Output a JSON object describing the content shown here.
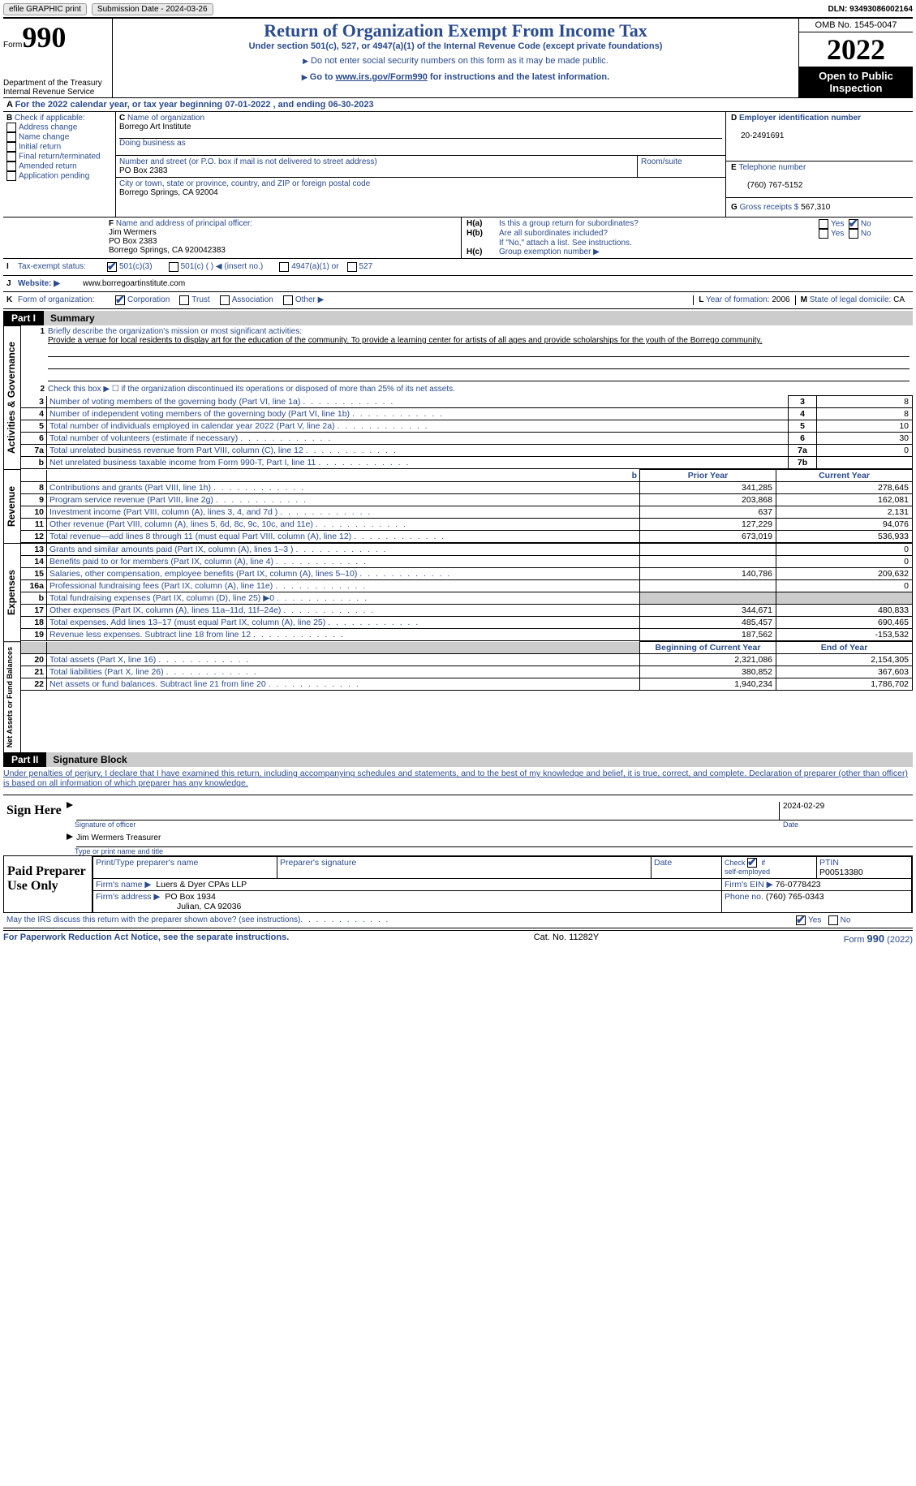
{
  "topbar": {
    "efile": "efile GRAPHIC print",
    "submission": "Submission Date - 2024-03-26",
    "dln": "DLN: 93493086002164"
  },
  "header": {
    "form_label": "Form",
    "form_no": "990",
    "dept1": "Department of the Treasury",
    "dept2": "Internal Revenue Service",
    "title": "Return of Organization Exempt From Income Tax",
    "subtitle": "Under section 501(c), 527, or 4947(a)(1) of the Internal Revenue Code (except private foundations)",
    "note1": "Do not enter social security numbers on this form as it may be made public.",
    "note2_pre": "Go to ",
    "note2_link": "www.irs.gov/Form990",
    "note2_post": " for instructions and the latest information.",
    "omb": "OMB No. 1545-0047",
    "year": "2022",
    "inspection": "Open to Public Inspection"
  },
  "A": {
    "line": "For the 2022 calendar year, or tax year beginning 07-01-2022    , and ending 06-30-2023"
  },
  "B": {
    "label": "Check if applicable:",
    "opts": [
      "Address change",
      "Name change",
      "Initial return",
      "Final return/terminated",
      "Amended return",
      "Application pending"
    ]
  },
  "C": {
    "name_label": "Name of organization",
    "name": "Borrego Art Institute",
    "dba_label": "Doing business as",
    "street_label": "Number and street (or P.O. box if mail is not delivered to street address)",
    "room_label": "Room/suite",
    "street": "PO Box 2383",
    "city_label": "City or town, state or province, country, and ZIP or foreign postal code",
    "city": "Borrego Springs, CA   92004"
  },
  "D": {
    "label": "Employer identification number",
    "val": "20-2491691"
  },
  "E": {
    "label": "Telephone number",
    "val": "(760) 767-5152"
  },
  "G": {
    "label": "Gross receipts $",
    "val": "567,310"
  },
  "F": {
    "label": "Name and address of principal officer:",
    "name": "Jim Wermers",
    "addr1": "PO Box 2383",
    "addr2": "Borrego Springs, CA   920042383"
  },
  "H": {
    "a": "Is this a group return for subordinates?",
    "b": "Are all subordinates included?",
    "b_note": "If \"No,\" attach a list. See instructions.",
    "c": "Group exemption number ▶",
    "yes": "Yes",
    "no": "No"
  },
  "I": {
    "label": "Tax-exempt status:",
    "o1": "501(c)(3)",
    "o2": "501(c) (   ) ◀ (insert no.)",
    "o3": "4947(a)(1) or",
    "o4": "527"
  },
  "J": {
    "label": "Website: ▶",
    "val": "www.borregoartinstitute.com"
  },
  "K": {
    "label": "Form of organization:",
    "o1": "Corporation",
    "o2": "Trust",
    "o3": "Association",
    "o4": "Other ▶"
  },
  "L": {
    "label": "Year of formation:",
    "val": "2006"
  },
  "M": {
    "label": "State of legal domicile:",
    "val": "CA"
  },
  "part1": {
    "label": "Part I",
    "title": "Summary"
  },
  "s1": {
    "q": "Briefly describe the organization's mission or most significant activities:",
    "a": "Provide a venue for local residents to display art for the education of the community. To provide a learning center for artists of all ages and provide scholarships for the youth of the Borrego community."
  },
  "s2": "Check this box ▶ ☐  if the organization discontinued its operations or disposed of more than 25% of its net assets.",
  "rows_ag": [
    {
      "n": "3",
      "t": "Number of voting members of the governing body (Part VI, line 1a)",
      "ln": "3",
      "v": "8"
    },
    {
      "n": "4",
      "t": "Number of independent voting members of the governing body (Part VI, line 1b)",
      "ln": "4",
      "v": "8"
    },
    {
      "n": "5",
      "t": "Total number of individuals employed in calendar year 2022 (Part V, line 2a)",
      "ln": "5",
      "v": "10"
    },
    {
      "n": "6",
      "t": "Total number of volunteers (estimate if necessary)",
      "ln": "6",
      "v": "30"
    },
    {
      "n": "7a",
      "t": "Total unrelated business revenue from Part VIII, column (C), line 12",
      "ln": "7a",
      "v": "0"
    },
    {
      "n": "b",
      "t": "Net unrelated business taxable income from Form 990-T, Part I, line 11",
      "ln": "7b",
      "v": ""
    }
  ],
  "col_hdr": {
    "prior": "Prior Year",
    "current": "Current Year"
  },
  "rev": [
    {
      "n": "8",
      "t": "Contributions and grants (Part VIII, line 1h)",
      "p": "341,285",
      "c": "278,645"
    },
    {
      "n": "9",
      "t": "Program service revenue (Part VIII, line 2g)",
      "p": "203,868",
      "c": "162,081"
    },
    {
      "n": "10",
      "t": "Investment income (Part VIII, column (A), lines 3, 4, and 7d )",
      "p": "637",
      "c": "2,131"
    },
    {
      "n": "11",
      "t": "Other revenue (Part VIII, column (A), lines 5, 6d, 8c, 9c, 10c, and 11e)",
      "p": "127,229",
      "c": "94,076"
    },
    {
      "n": "12",
      "t": "Total revenue—add lines 8 through 11 (must equal Part VIII, column (A), line 12)",
      "p": "673,019",
      "c": "536,933"
    }
  ],
  "exp": [
    {
      "n": "13",
      "t": "Grants and similar amounts paid (Part IX, column (A), lines 1–3 )",
      "p": "",
      "c": "0"
    },
    {
      "n": "14",
      "t": "Benefits paid to or for members (Part IX, column (A), line 4)",
      "p": "",
      "c": "0"
    },
    {
      "n": "15",
      "t": "Salaries, other compensation, employee benefits (Part IX, column (A), lines 5–10)",
      "p": "140,786",
      "c": "209,632"
    },
    {
      "n": "16a",
      "t": "Professional fundraising fees (Part IX, column (A), line 11e)",
      "p": "",
      "c": "0"
    },
    {
      "n": "b",
      "t": "Total fundraising expenses (Part IX, column (D), line 25) ▶0",
      "p": "grey",
      "c": "grey"
    },
    {
      "n": "17",
      "t": "Other expenses (Part IX, column (A), lines 11a–11d, 11f–24e)",
      "p": "344,671",
      "c": "480,833"
    },
    {
      "n": "18",
      "t": "Total expenses. Add lines 13–17 (must equal Part IX, column (A), line 25)",
      "p": "485,457",
      "c": "690,465"
    },
    {
      "n": "19",
      "t": "Revenue less expenses. Subtract line 18 from line 12",
      "p": "187,562",
      "c": "-153,532"
    }
  ],
  "col_hdr2": {
    "beg": "Beginning of Current Year",
    "end": "End of Year"
  },
  "net": [
    {
      "n": "20",
      "t": "Total assets (Part X, line 16)",
      "p": "2,321,086",
      "c": "2,154,305"
    },
    {
      "n": "21",
      "t": "Total liabilities (Part X, line 26)",
      "p": "380,852",
      "c": "367,603"
    },
    {
      "n": "22",
      "t": "Net assets or fund balances. Subtract line 21 from line 20",
      "p": "1,940,234",
      "c": "1,786,702"
    }
  ],
  "vlabels": {
    "ag": "Activities & Governance",
    "rev": "Revenue",
    "exp": "Expenses",
    "net": "Net Assets or Fund Balances"
  },
  "part2": {
    "label": "Part II",
    "title": "Signature Block",
    "decl": "Under penalties of perjury, I declare that I have examined this return, including accompanying schedules and statements, and to the best of my knowledge and belief, it is true, correct, and complete. Declaration of preparer (other than officer) is based on all information of which preparer has any knowledge."
  },
  "sign": {
    "here": "Sign Here",
    "sig_label": "Signature of officer",
    "date_label": "Date",
    "date": "2024-02-29",
    "name": "Jim Wermers  Treasurer",
    "name_label": "Type or print name and title"
  },
  "prep": {
    "label": "Paid Preparer Use Only",
    "h1": "Print/Type preparer's name",
    "h2": "Preparer's signature",
    "h3": "Date",
    "h4": "Check ☑ if self-employed",
    "h5": "PTIN",
    "ptin": "P00513380",
    "firm_label": "Firm's name    ▶",
    "firm": "Luers & Dyer CPAs LLP",
    "ein_label": "Firm's EIN ▶",
    "ein": "76-0778423",
    "addr_label": "Firm's address ▶",
    "addr1": "PO Box 1934",
    "addr2": "Julian, CA   92036",
    "phone_label": "Phone no.",
    "phone": "(760) 765-0343"
  },
  "discuss": {
    "q": "May the IRS discuss this return with the preparer shown above? (see instructions)",
    "yes": "Yes",
    "no": "No"
  },
  "footer": {
    "l": "For Paperwork Reduction Act Notice, see the separate instructions.",
    "m": "Cat. No. 11282Y",
    "r": "Form 990 (2022)"
  },
  "colors": {
    "blue": "#2a4b8d"
  }
}
